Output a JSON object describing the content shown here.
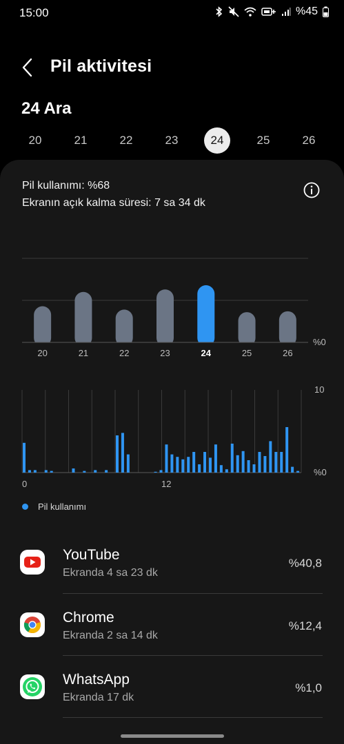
{
  "status_bar": {
    "time": "15:00",
    "battery_text": "%45",
    "icons": [
      "bluetooth-icon",
      "mute-icon",
      "wifi-icon",
      "lte-plus-icon",
      "signal-icon",
      "battery-icon"
    ]
  },
  "header": {
    "title": "Pil aktivitesi",
    "back_icon": "chevron-left-icon"
  },
  "date_heading": "24 Ara",
  "days": [
    "20",
    "21",
    "22",
    "23",
    "24",
    "25",
    "26"
  ],
  "selected_day": "24",
  "summary": {
    "usage": "Pil kullanımı: %68",
    "screen_time": "Ekranın açık kalma süresi: 7 sa 34 dk",
    "info_icon": "info-icon"
  },
  "colors": {
    "accent": "#2f95f2",
    "bar_inactive": "#6b7585",
    "card_bg": "#171717"
  },
  "chart_data": [
    {
      "type": "bar",
      "categories": [
        "20",
        "21",
        "22",
        "23",
        "24",
        "25",
        "26"
      ],
      "values": [
        43,
        60,
        39,
        63,
        68,
        36,
        37
      ],
      "highlight": "24",
      "y_tick_label": "%0",
      "ylim": [
        0,
        100
      ],
      "grid": true
    },
    {
      "type": "bar",
      "x_tick_labels": [
        "0",
        "12"
      ],
      "y_tick_labels": [
        "10",
        "%0"
      ],
      "ylim": [
        0,
        10
      ],
      "grid": true,
      "values": [
        3.6,
        0.3,
        0.3,
        0,
        0.3,
        0.2,
        0,
        0,
        0,
        0.5,
        0,
        0.2,
        0,
        0.3,
        0,
        0.3,
        0,
        4.5,
        4.8,
        2.2,
        0,
        0,
        0,
        0,
        0.1,
        0.3,
        3.4,
        2.2,
        1.9,
        1.6,
        1.9,
        2.5,
        1.0,
        2.5,
        1.8,
        3.4,
        0.9,
        0.4,
        3.5,
        2.1,
        2.6,
        1.5,
        1.0,
        2.5,
        2.0,
        3.8,
        2.5,
        2.5,
        5.5,
        0.7,
        0.2
      ],
      "legend": "Pil kullanımı"
    }
  ],
  "apps": [
    {
      "name": "YouTube",
      "sub": "Ekranda 4 sa 23 dk",
      "pct": "%40,8",
      "icon": "youtube-icon"
    },
    {
      "name": "Chrome",
      "sub": "Ekranda 2 sa 14 dk",
      "pct": "%12,4",
      "icon": "chrome-icon"
    },
    {
      "name": "WhatsApp",
      "sub": "Ekranda 17 dk",
      "pct": "%1,0",
      "icon": "whatsapp-icon"
    }
  ]
}
